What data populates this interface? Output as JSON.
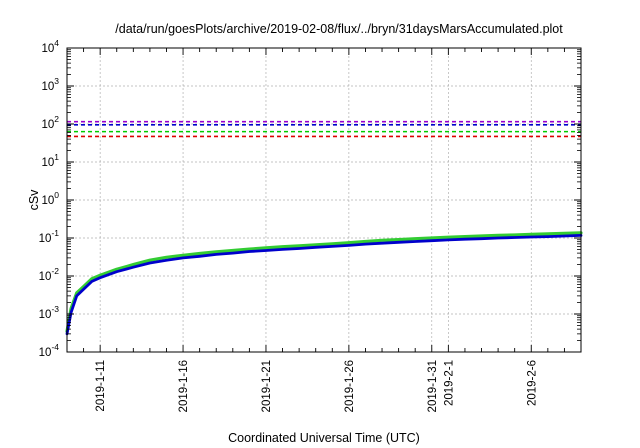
{
  "chart_data": {
    "type": "line",
    "title": "/data/run/goesPlots/archive/2019-02-08/flux/../bryn/31daysMarsAccumulated.plot",
    "xlabel": "Coordinated Universal Time (UTC)",
    "ylabel": "cSv",
    "yscale": "log",
    "ylim": [
      0.0001,
      10000
    ],
    "xlim": [
      "2019-01-09",
      "2019-02-09"
    ],
    "grid": true,
    "y_ticks": [
      {
        "base": "10",
        "exp": "-4"
      },
      {
        "base": "10",
        "exp": "-3"
      },
      {
        "base": "10",
        "exp": "-2"
      },
      {
        "base": "10",
        "exp": "-1"
      },
      {
        "base": "10",
        "exp": "0"
      },
      {
        "base": "10",
        "exp": "1"
      },
      {
        "base": "10",
        "exp": "2"
      },
      {
        "base": "10",
        "exp": "3"
      },
      {
        "base": "10",
        "exp": "4"
      }
    ],
    "x_ticks": [
      {
        "date": "2019-01-11",
        "label": "2019-1-11"
      },
      {
        "date": "2019-01-16",
        "label": "2019-1-16"
      },
      {
        "date": "2019-01-21",
        "label": "2019-1-21"
      },
      {
        "date": "2019-01-26",
        "label": "2019-1-26"
      },
      {
        "date": "2019-01-31",
        "label": "2019-1-31"
      },
      {
        "date": "2019-02-01",
        "label": "2019-2-1"
      },
      {
        "date": "2019-02-06",
        "label": "2019-2-6"
      }
    ],
    "thresholds": [
      {
        "y": 115,
        "color": "#9900cc"
      },
      {
        "y": 95,
        "color": "#0000cc"
      },
      {
        "y": 63,
        "color": "#00cc00"
      },
      {
        "y": 47,
        "color": "#dd0000"
      }
    ],
    "series": [
      {
        "color": "#33cc33",
        "x": [
          "2019-01-09",
          "2019-01-09T06:00",
          "2019-01-09T14:00",
          "2019-01-10",
          "2019-01-10T12:00",
          "2019-01-11",
          "2019-01-12",
          "2019-01-13",
          "2019-01-14",
          "2019-01-15",
          "2019-01-16",
          "2019-01-17",
          "2019-01-18",
          "2019-01-19",
          "2019-01-20",
          "2019-01-21",
          "2019-01-22",
          "2019-01-23",
          "2019-01-24",
          "2019-01-25",
          "2019-01-26",
          "2019-01-27",
          "2019-01-28",
          "2019-01-29",
          "2019-01-30",
          "2019-01-31",
          "2019-02-01",
          "2019-02-02",
          "2019-02-03",
          "2019-02-04",
          "2019-02-05",
          "2019-02-06",
          "2019-02-07",
          "2019-02-08",
          "2019-02-09"
        ],
        "y": [
          0.00035,
          0.0014,
          0.0036,
          0.0053,
          0.0085,
          0.0105,
          0.015,
          0.02,
          0.026,
          0.031,
          0.035,
          0.039,
          0.043,
          0.047,
          0.051,
          0.055,
          0.059,
          0.062,
          0.066,
          0.07,
          0.075,
          0.081,
          0.087,
          0.091,
          0.096,
          0.1,
          0.105,
          0.109,
          0.113,
          0.117,
          0.12,
          0.124,
          0.128,
          0.132,
          0.137
        ]
      },
      {
        "color": "#0000cc",
        "x": [
          "2019-01-09",
          "2019-01-09T06:00",
          "2019-01-09T14:00",
          "2019-01-10",
          "2019-01-10T12:00",
          "2019-01-11",
          "2019-01-12",
          "2019-01-13",
          "2019-01-14",
          "2019-01-15",
          "2019-01-16",
          "2019-01-17",
          "2019-01-18",
          "2019-01-19",
          "2019-01-20",
          "2019-01-21",
          "2019-01-22",
          "2019-01-23",
          "2019-01-24",
          "2019-01-25",
          "2019-01-26",
          "2019-01-27",
          "2019-01-28",
          "2019-01-29",
          "2019-01-30",
          "2019-01-31",
          "2019-02-01",
          "2019-02-02",
          "2019-02-03",
          "2019-02-04",
          "2019-02-05",
          "2019-02-06",
          "2019-02-07",
          "2019-02-08",
          "2019-02-09"
        ],
        "y": [
          0.0003,
          0.0011,
          0.003,
          0.0045,
          0.0072,
          0.009,
          0.013,
          0.017,
          0.022,
          0.026,
          0.03,
          0.033,
          0.037,
          0.04,
          0.044,
          0.047,
          0.05,
          0.053,
          0.057,
          0.06,
          0.064,
          0.069,
          0.073,
          0.077,
          0.081,
          0.085,
          0.089,
          0.093,
          0.096,
          0.1,
          0.103,
          0.106,
          0.109,
          0.113,
          0.117
        ]
      }
    ]
  }
}
